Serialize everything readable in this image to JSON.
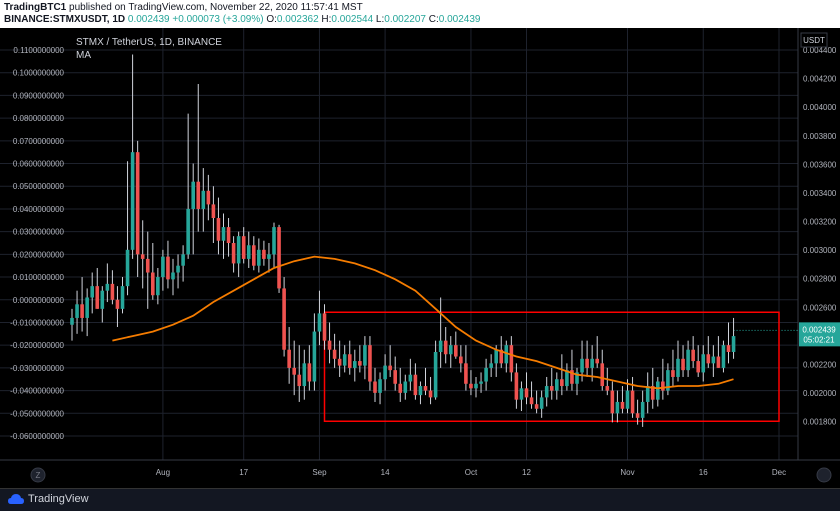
{
  "header": {
    "author": "TradingBTC1",
    "published_text": " published on TradingView.com, November 22, 2020 11:57:41 MST",
    "symbol": "BINANCE:STMXUSDT, 1D",
    "ohlc": " 0.002439 ",
    "change": "+0.000073 (+3.09%)",
    "o_label": " O:",
    "o_value": "0.002362",
    "h_label": " H:",
    "h_value": "0.002544",
    "l_label": " L:",
    "l_value": "0.002207",
    "c_label": " C:",
    "c_value": "0.002439"
  },
  "chart_header": {
    "title": "STMX / TetherUS, 1D, BINANCE",
    "indicator": "MA"
  },
  "footer": {
    "brand": "TradingView"
  },
  "colors": {
    "background": "#000000",
    "up": "#26a69a",
    "down": "#ef5350",
    "ma": "#f57c00",
    "box": "#ff0000",
    "grid": "#1e222d",
    "text": "#b2b5be"
  },
  "chart_data": {
    "type": "candlestick",
    "title": "STMX / TetherUS, 1D, BINANCE",
    "currency_label": "USDT",
    "last_price_label": "0.002439",
    "countdown_label": "05:02:21",
    "x_ticks": [
      {
        "day": 18,
        "label": "Aug"
      },
      {
        "day": 34,
        "label": "17"
      },
      {
        "day": 49,
        "label": "Sep"
      },
      {
        "day": 62,
        "label": "14"
      },
      {
        "day": 79,
        "label": "Oct"
      },
      {
        "day": 90,
        "label": "12"
      },
      {
        "day": 110,
        "label": "Nov"
      },
      {
        "day": 125,
        "label": "16"
      },
      {
        "day": 140,
        "label": "Dec"
      }
    ],
    "left_axis": {
      "ticks": [
        "0.1100000000",
        "0.1000000000",
        "0.0900000000",
        "0.0800000000",
        "0.0700000000",
        "0.0600000000",
        "0.0500000000",
        "0.0400000000",
        "0.0300000000",
        "0.0200000000",
        "0.0100000000",
        "0.0000000000",
        "-0.0100000000",
        "-0.0200000000",
        "-0.0300000000",
        "-0.0400000000",
        "-0.0500000000",
        "-0.0600000000"
      ],
      "range": [
        -0.06,
        0.11
      ]
    },
    "right_axis": {
      "ticks": [
        "0.004400",
        "0.004200",
        "0.004000",
        "0.003800",
        "0.003600",
        "0.003400",
        "0.003200",
        "0.003000",
        "0.002800",
        "0.002600",
        "0.002400",
        "0.002200",
        "0.002000",
        "0.001800"
      ],
      "range": [
        0.0017,
        0.0044
      ]
    },
    "candles": [
      {
        "o": -0.011,
        "h": -0.004,
        "l": -0.018,
        "c": -0.008
      },
      {
        "o": -0.008,
        "h": 0.004,
        "l": -0.015,
        "c": -0.002
      },
      {
        "o": -0.002,
        "h": 0.01,
        "l": -0.014,
        "c": -0.008
      },
      {
        "o": -0.008,
        "h": 0.005,
        "l": -0.016,
        "c": 0.001
      },
      {
        "o": 0.001,
        "h": 0.012,
        "l": -0.006,
        "c": 0.006
      },
      {
        "o": 0.006,
        "h": 0.014,
        "l": -0.004,
        "c": -0.004
      },
      {
        "o": -0.004,
        "h": 0.006,
        "l": -0.01,
        "c": 0.004
      },
      {
        "o": 0.004,
        "h": 0.016,
        "l": -0.001,
        "c": 0.007
      },
      {
        "o": 0.007,
        "h": 0.013,
        "l": -0.002,
        "c": 0.0
      },
      {
        "o": 0.0,
        "h": 0.006,
        "l": -0.012,
        "c": -0.004
      },
      {
        "o": -0.004,
        "h": 0.01,
        "l": -0.006,
        "c": 0.006
      },
      {
        "o": 0.006,
        "h": 0.061,
        "l": 0.002,
        "c": 0.022
      },
      {
        "o": 0.022,
        "h": 0.108,
        "l": 0.018,
        "c": 0.065
      },
      {
        "o": 0.065,
        "h": 0.07,
        "l": 0.01,
        "c": 0.02
      },
      {
        "o": 0.02,
        "h": 0.035,
        "l": 0.005,
        "c": 0.018
      },
      {
        "o": 0.018,
        "h": 0.03,
        "l": -0.004,
        "c": 0.012
      },
      {
        "o": 0.012,
        "h": 0.025,
        "l": 0.0,
        "c": 0.002
      },
      {
        "o": 0.002,
        "h": 0.014,
        "l": -0.002,
        "c": 0.01
      },
      {
        "o": 0.01,
        "h": 0.022,
        "l": 0.004,
        "c": 0.019
      },
      {
        "o": 0.019,
        "h": 0.026,
        "l": 0.005,
        "c": 0.009
      },
      {
        "o": 0.009,
        "h": 0.018,
        "l": 0.002,
        "c": 0.012
      },
      {
        "o": 0.012,
        "h": 0.02,
        "l": 0.005,
        "c": 0.015
      },
      {
        "o": 0.015,
        "h": 0.024,
        "l": 0.008,
        "c": 0.02
      },
      {
        "o": 0.02,
        "h": 0.082,
        "l": 0.018,
        "c": 0.04
      },
      {
        "o": 0.04,
        "h": 0.06,
        "l": 0.02,
        "c": 0.052
      },
      {
        "o": 0.052,
        "h": 0.095,
        "l": 0.03,
        "c": 0.04
      },
      {
        "o": 0.04,
        "h": 0.058,
        "l": 0.03,
        "c": 0.048
      },
      {
        "o": 0.048,
        "h": 0.055,
        "l": 0.035,
        "c": 0.042
      },
      {
        "o": 0.042,
        "h": 0.05,
        "l": 0.025,
        "c": 0.036
      },
      {
        "o": 0.036,
        "h": 0.045,
        "l": 0.02,
        "c": 0.026
      },
      {
        "o": 0.026,
        "h": 0.038,
        "l": 0.018,
        "c": 0.032
      },
      {
        "o": 0.032,
        "h": 0.036,
        "l": 0.019,
        "c": 0.025
      },
      {
        "o": 0.025,
        "h": 0.028,
        "l": 0.012,
        "c": 0.016
      },
      {
        "o": 0.016,
        "h": 0.03,
        "l": 0.01,
        "c": 0.028
      },
      {
        "o": 0.028,
        "h": 0.032,
        "l": 0.016,
        "c": 0.018
      },
      {
        "o": 0.018,
        "h": 0.03,
        "l": 0.014,
        "c": 0.024
      },
      {
        "o": 0.024,
        "h": 0.028,
        "l": 0.013,
        "c": 0.015
      },
      {
        "o": 0.015,
        "h": 0.027,
        "l": 0.012,
        "c": 0.022
      },
      {
        "o": 0.022,
        "h": 0.026,
        "l": 0.015,
        "c": 0.018
      },
      {
        "o": 0.018,
        "h": 0.025,
        "l": 0.012,
        "c": 0.02
      },
      {
        "o": 0.02,
        "h": 0.034,
        "l": 0.014,
        "c": 0.032
      },
      {
        "o": 0.032,
        "h": 0.033,
        "l": 0.003,
        "c": 0.005
      },
      {
        "o": 0.005,
        "h": 0.01,
        "l": -0.025,
        "c": -0.022
      },
      {
        "o": -0.022,
        "h": -0.012,
        "l": -0.037,
        "c": -0.03
      },
      {
        "o": -0.03,
        "h": -0.018,
        "l": -0.042,
        "c": -0.033
      },
      {
        "o": -0.033,
        "h": -0.02,
        "l": -0.045,
        "c": -0.038
      },
      {
        "o": -0.038,
        "h": -0.022,
        "l": -0.044,
        "c": -0.028
      },
      {
        "o": -0.028,
        "h": -0.02,
        "l": -0.04,
        "c": -0.036
      },
      {
        "o": -0.036,
        "h": -0.006,
        "l": -0.04,
        "c": -0.014
      },
      {
        "o": -0.014,
        "h": 0.004,
        "l": -0.02,
        "c": -0.006
      },
      {
        "o": -0.006,
        "h": -0.002,
        "l": -0.022,
        "c": -0.018
      },
      {
        "o": -0.018,
        "h": -0.01,
        "l": -0.028,
        "c": -0.022
      },
      {
        "o": -0.022,
        "h": -0.015,
        "l": -0.03,
        "c": -0.026
      },
      {
        "o": -0.026,
        "h": -0.018,
        "l": -0.034,
        "c": -0.029
      },
      {
        "o": -0.029,
        "h": -0.02,
        "l": -0.032,
        "c": -0.024
      },
      {
        "o": -0.024,
        "h": -0.018,
        "l": -0.033,
        "c": -0.03
      },
      {
        "o": -0.03,
        "h": -0.022,
        "l": -0.036,
        "c": -0.027
      },
      {
        "o": -0.027,
        "h": -0.02,
        "l": -0.032,
        "c": -0.029
      },
      {
        "o": -0.029,
        "h": -0.016,
        "l": -0.035,
        "c": -0.02
      },
      {
        "o": -0.02,
        "h": -0.016,
        "l": -0.04,
        "c": -0.036
      },
      {
        "o": -0.036,
        "h": -0.03,
        "l": -0.045,
        "c": -0.041
      },
      {
        "o": -0.041,
        "h": -0.032,
        "l": -0.046,
        "c": -0.035
      },
      {
        "o": -0.035,
        "h": -0.024,
        "l": -0.04,
        "c": -0.029
      },
      {
        "o": -0.029,
        "h": -0.02,
        "l": -0.034,
        "c": -0.031
      },
      {
        "o": -0.031,
        "h": -0.025,
        "l": -0.04,
        "c": -0.037
      },
      {
        "o": -0.037,
        "h": -0.03,
        "l": -0.045,
        "c": -0.041
      },
      {
        "o": -0.041,
        "h": -0.033,
        "l": -0.044,
        "c": -0.036
      },
      {
        "o": -0.036,
        "h": -0.026,
        "l": -0.04,
        "c": -0.033
      },
      {
        "o": -0.033,
        "h": -0.028,
        "l": -0.044,
        "c": -0.042
      },
      {
        "o": -0.042,
        "h": -0.036,
        "l": -0.046,
        "c": -0.038
      },
      {
        "o": -0.038,
        "h": -0.03,
        "l": -0.042,
        "c": -0.04
      },
      {
        "o": -0.04,
        "h": -0.034,
        "l": -0.046,
        "c": -0.043
      },
      {
        "o": -0.043,
        "h": -0.018,
        "l": -0.044,
        "c": -0.023
      },
      {
        "o": -0.023,
        "h": 0.001,
        "l": -0.03,
        "c": -0.018
      },
      {
        "o": -0.018,
        "h": -0.012,
        "l": -0.028,
        "c": -0.024
      },
      {
        "o": -0.024,
        "h": -0.016,
        "l": -0.03,
        "c": -0.02
      },
      {
        "o": -0.02,
        "h": -0.014,
        "l": -0.026,
        "c": -0.025
      },
      {
        "o": -0.025,
        "h": -0.02,
        "l": -0.032,
        "c": -0.028
      },
      {
        "o": -0.028,
        "h": -0.02,
        "l": -0.04,
        "c": -0.037
      },
      {
        "o": -0.037,
        "h": -0.031,
        "l": -0.042,
        "c": -0.039
      },
      {
        "o": -0.039,
        "h": -0.034,
        "l": -0.043,
        "c": -0.037
      },
      {
        "o": -0.037,
        "h": -0.032,
        "l": -0.041,
        "c": -0.036
      },
      {
        "o": -0.036,
        "h": -0.026,
        "l": -0.04,
        "c": -0.03
      },
      {
        "o": -0.03,
        "h": -0.024,
        "l": -0.034,
        "c": -0.028
      },
      {
        "o": -0.028,
        "h": -0.02,
        "l": -0.034,
        "c": -0.022
      },
      {
        "o": -0.022,
        "h": -0.016,
        "l": -0.03,
        "c": -0.028
      },
      {
        "o": -0.028,
        "h": -0.018,
        "l": -0.032,
        "c": -0.02
      },
      {
        "o": -0.02,
        "h": -0.016,
        "l": -0.036,
        "c": -0.032
      },
      {
        "o": -0.032,
        "h": -0.028,
        "l": -0.048,
        "c": -0.044
      },
      {
        "o": -0.044,
        "h": -0.036,
        "l": -0.049,
        "c": -0.039
      },
      {
        "o": -0.039,
        "h": -0.032,
        "l": -0.046,
        "c": -0.043
      },
      {
        "o": -0.043,
        "h": -0.036,
        "l": -0.048,
        "c": -0.046
      },
      {
        "o": -0.046,
        "h": -0.04,
        "l": -0.05,
        "c": -0.048
      },
      {
        "o": -0.048,
        "h": -0.04,
        "l": -0.052,
        "c": -0.043
      },
      {
        "o": -0.043,
        "h": -0.034,
        "l": -0.047,
        "c": -0.038
      },
      {
        "o": -0.038,
        "h": -0.03,
        "l": -0.044,
        "c": -0.04
      },
      {
        "o": -0.04,
        "h": -0.032,
        "l": -0.044,
        "c": -0.035
      },
      {
        "o": -0.035,
        "h": -0.024,
        "l": -0.042,
        "c": -0.038
      },
      {
        "o": -0.038,
        "h": -0.028,
        "l": -0.04,
        "c": -0.031
      },
      {
        "o": -0.031,
        "h": -0.022,
        "l": -0.04,
        "c": -0.037
      },
      {
        "o": -0.037,
        "h": -0.03,
        "l": -0.042,
        "c": -0.032
      },
      {
        "o": -0.032,
        "h": -0.018,
        "l": -0.036,
        "c": -0.026
      },
      {
        "o": -0.026,
        "h": -0.018,
        "l": -0.034,
        "c": -0.03
      },
      {
        "o": -0.03,
        "h": -0.02,
        "l": -0.036,
        "c": -0.026
      },
      {
        "o": -0.026,
        "h": -0.016,
        "l": -0.03,
        "c": -0.028
      },
      {
        "o": -0.028,
        "h": -0.022,
        "l": -0.04,
        "c": -0.038
      },
      {
        "o": -0.038,
        "h": -0.03,
        "l": -0.042,
        "c": -0.04
      },
      {
        "o": -0.04,
        "h": -0.036,
        "l": -0.054,
        "c": -0.05
      },
      {
        "o": -0.05,
        "h": -0.04,
        "l": -0.054,
        "c": -0.045
      },
      {
        "o": -0.045,
        "h": -0.038,
        "l": -0.05,
        "c": -0.048
      },
      {
        "o": -0.048,
        "h": -0.035,
        "l": -0.05,
        "c": -0.04
      },
      {
        "o": -0.04,
        "h": -0.034,
        "l": -0.052,
        "c": -0.05
      },
      {
        "o": -0.05,
        "h": -0.044,
        "l": -0.055,
        "c": -0.052
      },
      {
        "o": -0.052,
        "h": -0.04,
        "l": -0.056,
        "c": -0.045
      },
      {
        "o": -0.045,
        "h": -0.032,
        "l": -0.05,
        "c": -0.038
      },
      {
        "o": -0.038,
        "h": -0.03,
        "l": -0.048,
        "c": -0.044
      },
      {
        "o": -0.044,
        "h": -0.034,
        "l": -0.047,
        "c": -0.036
      },
      {
        "o": -0.036,
        "h": -0.026,
        "l": -0.044,
        "c": -0.04
      },
      {
        "o": -0.04,
        "h": -0.028,
        "l": -0.042,
        "c": -0.031
      },
      {
        "o": -0.031,
        "h": -0.022,
        "l": -0.038,
        "c": -0.034
      },
      {
        "o": -0.034,
        "h": -0.018,
        "l": -0.036,
        "c": -0.026
      },
      {
        "o": -0.026,
        "h": -0.02,
        "l": -0.034,
        "c": -0.031
      },
      {
        "o": -0.031,
        "h": -0.018,
        "l": -0.034,
        "c": -0.022
      },
      {
        "o": -0.022,
        "h": -0.016,
        "l": -0.03,
        "c": -0.027
      },
      {
        "o": -0.027,
        "h": -0.02,
        "l": -0.034,
        "c": -0.032
      },
      {
        "o": -0.032,
        "h": -0.02,
        "l": -0.036,
        "c": -0.024
      },
      {
        "o": -0.024,
        "h": -0.016,
        "l": -0.03,
        "c": -0.028
      },
      {
        "o": -0.028,
        "h": -0.02,
        "l": -0.034,
        "c": -0.025
      },
      {
        "o": -0.025,
        "h": -0.016,
        "l": -0.03,
        "c": -0.03
      },
      {
        "o": -0.03,
        "h": -0.018,
        "l": -0.032,
        "c": -0.02
      },
      {
        "o": -0.02,
        "h": -0.01,
        "l": -0.028,
        "c": -0.023
      },
      {
        "o": -0.023,
        "h": -0.008,
        "l": -0.026,
        "c": -0.016
      }
    ],
    "ma_series": [
      [
        8,
        -0.018
      ],
      [
        12,
        -0.016
      ],
      [
        16,
        -0.014
      ],
      [
        20,
        -0.011
      ],
      [
        24,
        -0.007
      ],
      [
        28,
        -0.001
      ],
      [
        32,
        0.004
      ],
      [
        36,
        0.009
      ],
      [
        40,
        0.014
      ],
      [
        44,
        0.017
      ],
      [
        48,
        0.019
      ],
      [
        52,
        0.018
      ],
      [
        56,
        0.016
      ],
      [
        60,
        0.013
      ],
      [
        64,
        0.009
      ],
      [
        68,
        0.004
      ],
      [
        72,
        -0.004
      ],
      [
        76,
        -0.012
      ],
      [
        80,
        -0.018
      ],
      [
        84,
        -0.022
      ],
      [
        88,
        -0.025
      ],
      [
        92,
        -0.027
      ],
      [
        96,
        -0.03
      ],
      [
        100,
        -0.033
      ],
      [
        104,
        -0.034
      ],
      [
        108,
        -0.036
      ],
      [
        112,
        -0.038
      ],
      [
        116,
        -0.039
      ],
      [
        120,
        -0.038
      ],
      [
        124,
        -0.038
      ],
      [
        128,
        -0.037
      ],
      [
        131,
        -0.035
      ]
    ],
    "highlight_box": {
      "day_start": 50,
      "day_end": 140,
      "y_top": -0.0055,
      "y_bottom": -0.0535
    }
  }
}
